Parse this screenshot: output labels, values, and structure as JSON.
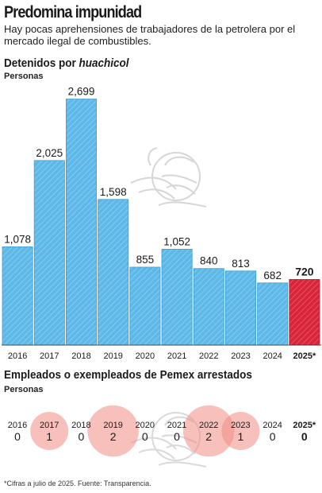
{
  "header": {
    "title": "Predomina impunidad",
    "subtitle": "Hay pocas aprehensiones de trabajadores de la petrolera por el mercado ilegal de combustibles."
  },
  "chart1": {
    "title_prefix": "Detenidos por ",
    "title_italic": "huachicol",
    "subtitle": "Personas"
  },
  "chart2": {
    "title": "Empleados o exempleados de Pemex arrestados",
    "subtitle": "Personas"
  },
  "note": "*Cifras a julio de 2025. Fuente: Transparencia.",
  "colors": {
    "bar_fill": "#5db8e8",
    "bar_hatch": "#8fd0f3",
    "highlight_fill": "#d8253a",
    "highlight_hatch": "#e85a6a",
    "bubble": "#f08c84"
  },
  "chart_data": [
    {
      "type": "bar",
      "categories": [
        "2016",
        "2017",
        "2018",
        "2019",
        "2020",
        "2021",
        "2022",
        "2023",
        "2024",
        "2025*"
      ],
      "values": [
        1078,
        2025,
        2699,
        1598,
        855,
        1052,
        840,
        813,
        682,
        720
      ],
      "value_labels": [
        "1,078",
        "2,025",
        "2,699",
        "1,598",
        "855",
        "1,052",
        "840",
        "813",
        "682",
        "720"
      ],
      "highlight_index": 9,
      "ylim": [
        0,
        2800
      ],
      "grid": false
    },
    {
      "type": "scatter",
      "categories": [
        "2016",
        "2017",
        "2018",
        "2019",
        "2020",
        "2021",
        "2022",
        "2023",
        "2024",
        "2025*"
      ],
      "values": [
        0,
        1,
        0,
        2,
        0,
        0,
        2,
        1,
        0,
        0
      ],
      "grid": false
    }
  ]
}
